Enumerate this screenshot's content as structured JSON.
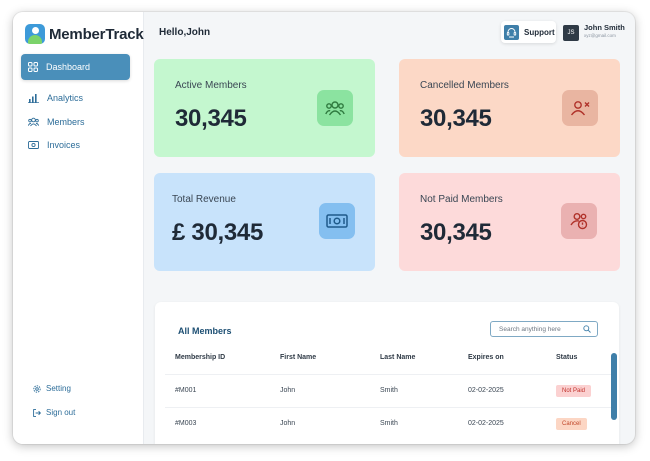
{
  "app": {
    "name": "MemberTrack"
  },
  "sidebar": {
    "items": [
      {
        "label": "Dashboard",
        "icon": "grid-icon",
        "active": true
      },
      {
        "label": "Analytics",
        "icon": "bar-chart-icon",
        "active": false
      },
      {
        "label": "Members",
        "icon": "users-icon",
        "active": false
      },
      {
        "label": "Invoices",
        "icon": "cash-icon",
        "active": false
      }
    ],
    "setting_label": "Setting",
    "signout_label": "Sign out"
  },
  "header": {
    "greeting": "Hello,John",
    "support_label": "Support",
    "user": {
      "initials": "JS",
      "name": "John Smith",
      "email": "xyz@gmail.com"
    }
  },
  "cards": [
    {
      "label": "Active Members",
      "value": "30,345",
      "bg": "#c4f7cf",
      "icon_bg": "#8be3a0",
      "icon_color": "#2f7a3f",
      "icon": "users-icon"
    },
    {
      "label": "Cancelled Members",
      "value": "30,345",
      "bg": "#fcd8c6",
      "icon_bg": "#e9b5a1",
      "icon_color": "#b0322a",
      "icon": "user-x-icon"
    },
    {
      "label": "Total Revenue",
      "value": "£ 30,345",
      "bg": "#c8e3fb",
      "icon_bg": "#84bff0",
      "icon_color": "#1e5a8a",
      "icon": "cash-icon"
    },
    {
      "label": "Not Paid Members",
      "value": "30,345",
      "bg": "#fddada",
      "icon_bg": "#eab1b1",
      "icon_color": "#b0322a",
      "icon": "users-alert-icon"
    }
  ],
  "table": {
    "title": "All Members",
    "search_placeholder": "Search anything here",
    "columns": [
      "Membership ID",
      "First Name",
      "Last Name",
      "Expires on",
      "Status"
    ],
    "rows": [
      {
        "id": "#M001",
        "first": "John",
        "last": "Smith",
        "expires": "02-02-2025",
        "status": "Not Paid",
        "status_bg": "#fbd1d1",
        "status_color": "#c0302a"
      },
      {
        "id": "#M003",
        "first": "John",
        "last": "Smith",
        "expires": "02-02-2025",
        "status": "Cancel",
        "status_bg": "#fcd6c4",
        "status_color": "#c0472a"
      }
    ]
  }
}
